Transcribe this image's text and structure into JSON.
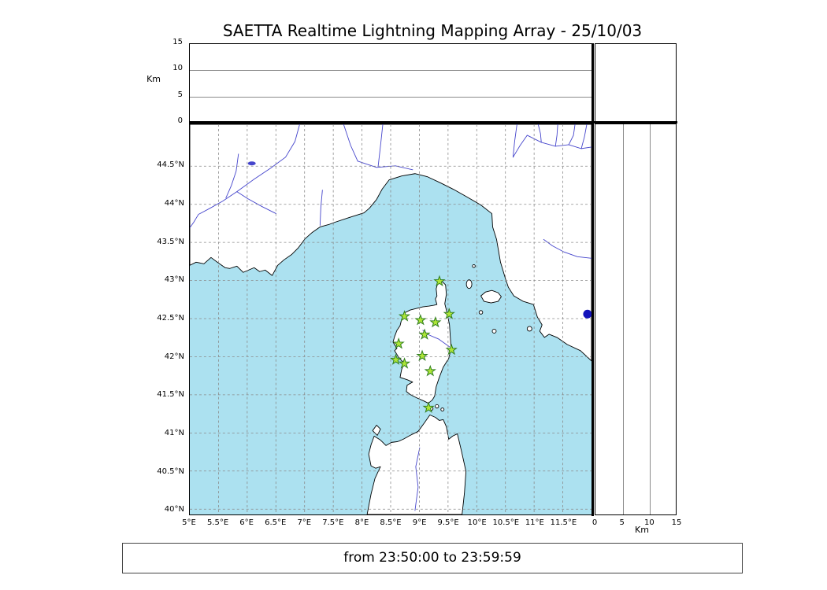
{
  "title": "SAETTA Realtime Lightning Mapping Array - 25/10/03",
  "status_bar": {
    "text": "from 23:50:00 to 23:59:59"
  },
  "altitude_panel_top": {
    "axis_label": "Km",
    "tick_values": [
      0,
      5,
      10,
      15
    ],
    "tick_labels": [
      "0",
      "5",
      "10",
      "15"
    ],
    "altitude_range_km": [
      0,
      15
    ]
  },
  "altitude_panel_right": {
    "axis_label": "Km",
    "tick_values": [
      0,
      5,
      10,
      15
    ],
    "tick_labels": [
      "0",
      "5",
      "10",
      "15"
    ],
    "altitude_range_km": [
      0,
      15
    ]
  },
  "map_panel": {
    "lon_range_deg_e": [
      5,
      12
    ],
    "lat_range_deg_n": [
      39.93,
      45.05
    ],
    "lon_ticks": [
      {
        "value": 5,
        "label": "5°E"
      },
      {
        "value": 5.5,
        "label": "5.5°E"
      },
      {
        "value": 6,
        "label": "6°E"
      },
      {
        "value": 6.5,
        "label": "6.5°E"
      },
      {
        "value": 7,
        "label": "7°E"
      },
      {
        "value": 7.5,
        "label": "7.5°E"
      },
      {
        "value": 8,
        "label": "8°E"
      },
      {
        "value": 8.5,
        "label": "8.5°E"
      },
      {
        "value": 9,
        "label": "9°E"
      },
      {
        "value": 9.5,
        "label": "9.5°E"
      },
      {
        "value": 10,
        "label": "10°E"
      },
      {
        "value": 10.5,
        "label": "10.5°E"
      },
      {
        "value": 11,
        "label": "11°E"
      },
      {
        "value": 11.5,
        "label": "11.5°E"
      }
    ],
    "lat_ticks": [
      {
        "value": 44.5,
        "label": "44.5°N"
      },
      {
        "value": 44,
        "label": "44°N"
      },
      {
        "value": 43.5,
        "label": "43.5°N"
      },
      {
        "value": 43,
        "label": "43°N"
      },
      {
        "value": 42.5,
        "label": "42.5°N"
      },
      {
        "value": 42,
        "label": "42°N"
      },
      {
        "value": 41.5,
        "label": "41.5°N"
      },
      {
        "value": 41,
        "label": "41°N"
      },
      {
        "value": 40.5,
        "label": "40.5°N"
      },
      {
        "value": 40,
        "label": "40°N"
      }
    ],
    "colors": {
      "sea": "#ace1f0",
      "land": "#ffffff",
      "coast": "#000000",
      "river": "#4545cc",
      "grid": "#8a8a8a"
    },
    "station_marker": {
      "shape": "star",
      "fill": "#aee637",
      "stroke": "#2f7d1e"
    },
    "stations": [
      {
        "lon": 9.35,
        "lat": 42.99
      },
      {
        "lon": 8.74,
        "lat": 42.53
      },
      {
        "lon": 9.02,
        "lat": 42.48
      },
      {
        "lon": 9.28,
        "lat": 42.45
      },
      {
        "lon": 9.52,
        "lat": 42.56
      },
      {
        "lon": 9.09,
        "lat": 42.29
      },
      {
        "lon": 8.64,
        "lat": 42.17
      },
      {
        "lon": 9.56,
        "lat": 42.09
      },
      {
        "lon": 8.59,
        "lat": 41.96
      },
      {
        "lon": 8.74,
        "lat": 41.91
      },
      {
        "lon": 9.05,
        "lat": 42.01
      },
      {
        "lon": 9.19,
        "lat": 41.81
      },
      {
        "lon": 9.16,
        "lat": 41.33
      }
    ],
    "event_point": {
      "lon": 11.93,
      "lat": 42.56,
      "color": "#1212bb"
    }
  }
}
